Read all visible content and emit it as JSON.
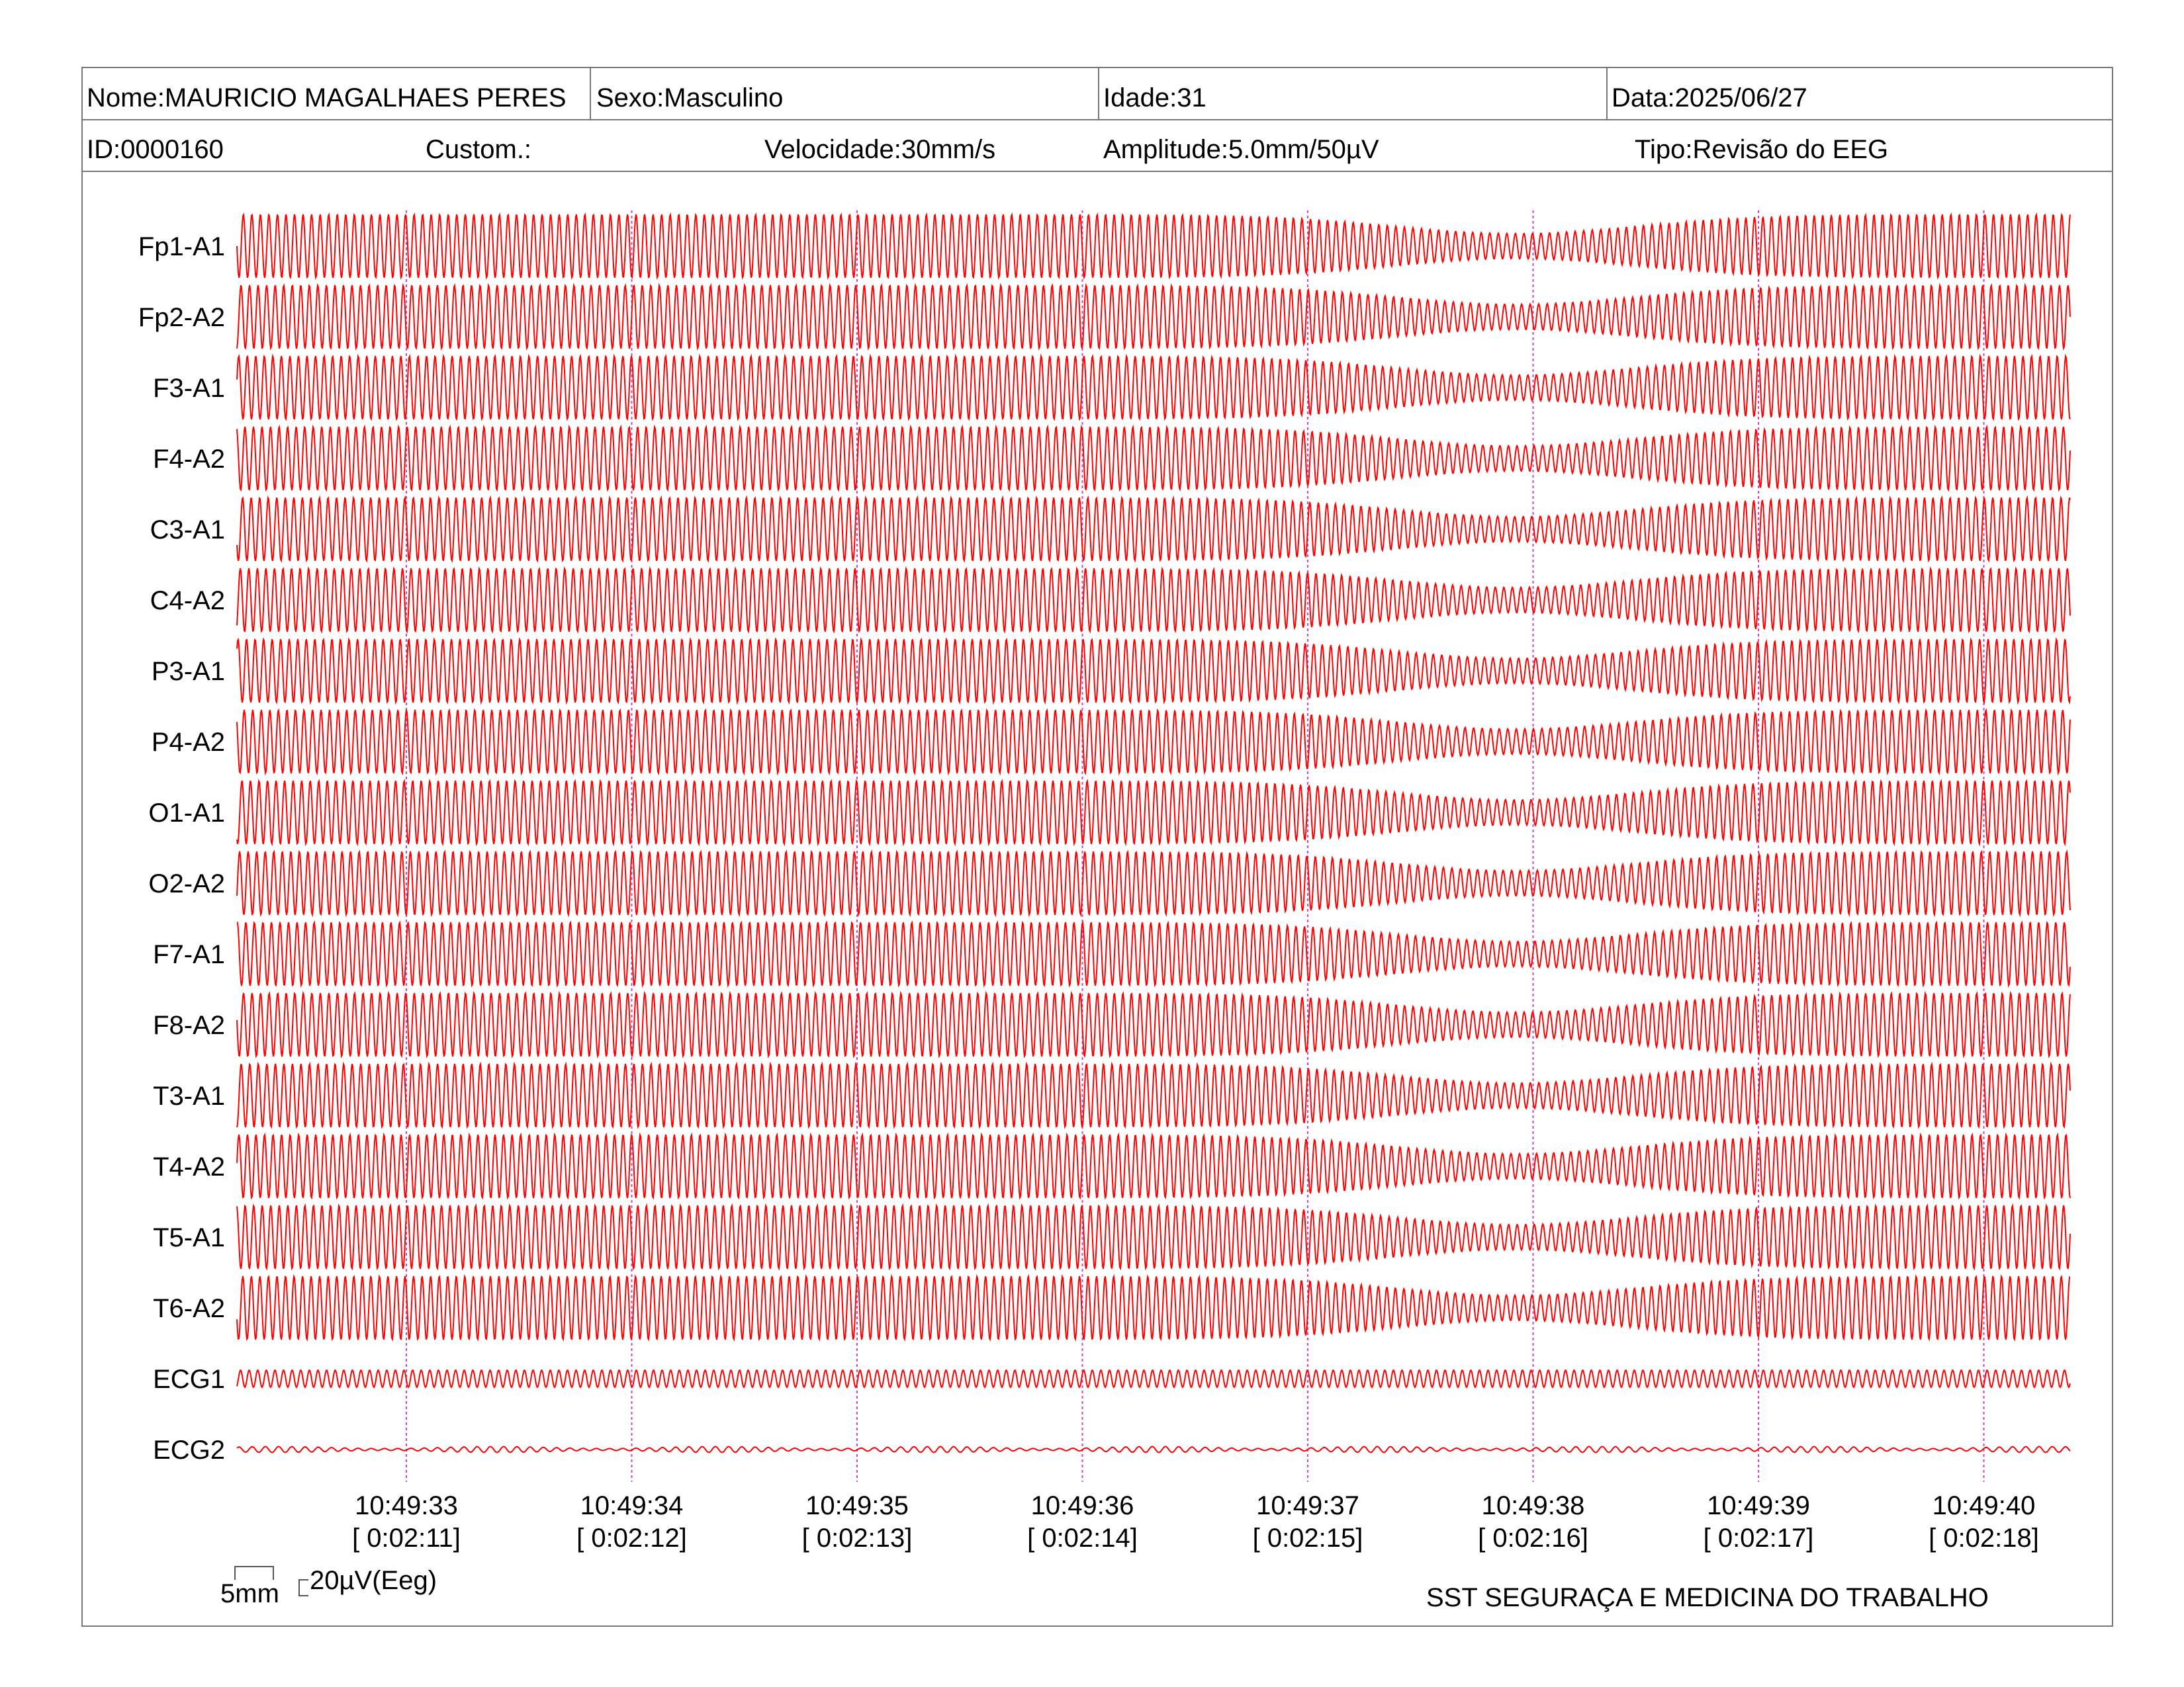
{
  "header": {
    "nome": "Nome:MAURICIO MAGALHAES PERES",
    "sexo": "Sexo:Masculino",
    "idade": "Idade:31",
    "data": "Data:2025/06/27",
    "id": "ID:0000160",
    "custom": "Custom.:",
    "velocidade": "Velocidade:30mm/s",
    "amplitude": "Amplitude:5.0mm/50µV",
    "tipo": "Tipo:Revisão do EEG"
  },
  "scale": {
    "time_label": "5mm",
    "amp_label": "20µV(Eeg)"
  },
  "footer": {
    "organization": "SST SEGURAÇA E MEDICINA DO TRABALHO"
  },
  "colors": {
    "trace": "#ff0000",
    "marker": "#cc44cc",
    "frame": "#777777"
  },
  "chart_data": {
    "type": "line",
    "channels": [
      "Fp1-A1",
      "Fp2-A2",
      "F3-A1",
      "F4-A2",
      "C3-A1",
      "C4-A2",
      "P3-A1",
      "P4-A2",
      "O1-A1",
      "O2-A2",
      "F7-A1",
      "F8-A2",
      "T3-A1",
      "T4-A2",
      "T5-A1",
      "T6-A2",
      "ECG1",
      "ECG2"
    ],
    "time_markers": [
      {
        "clock": "10:49:33",
        "elapsed": "[ 0:02:11]"
      },
      {
        "clock": "10:49:34",
        "elapsed": "[ 0:02:12]"
      },
      {
        "clock": "10:49:35",
        "elapsed": "[ 0:02:13]"
      },
      {
        "clock": "10:49:36",
        "elapsed": "[ 0:02:14]"
      },
      {
        "clock": "10:49:37",
        "elapsed": "[ 0:02:15]"
      },
      {
        "clock": "10:49:38",
        "elapsed": "[ 0:02:16]"
      },
      {
        "clock": "10:49:39",
        "elapsed": "[ 0:02:17]"
      },
      {
        "clock": "10:49:40",
        "elapsed": "[ 0:02:18]"
      }
    ],
    "speed_mm_per_s": 30,
    "amplitude_mm_per_50uV": 5.0
  }
}
